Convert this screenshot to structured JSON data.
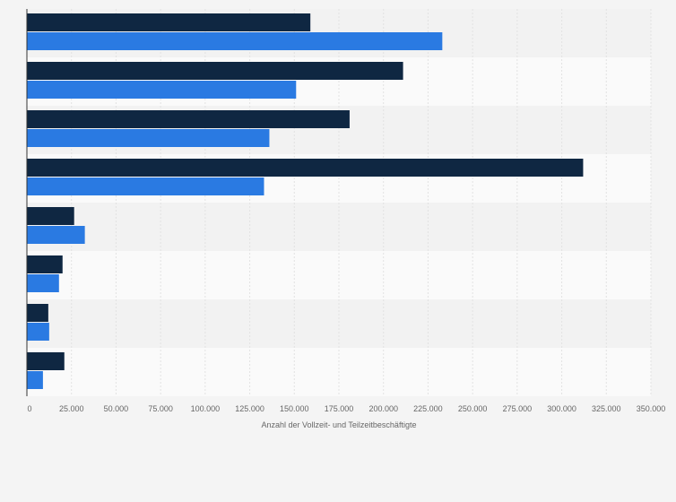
{
  "colors": {
    "background": "#f4f4f4",
    "plot_band_dark": "#f2f2f2",
    "plot_band_light": "#fafafa",
    "gridline": "#e2e2e2",
    "axis_line": "#333333",
    "tick_text": "#666666"
  },
  "chart_data": {
    "type": "bar",
    "orientation": "horizontal",
    "categories": [
      "",
      "",
      "",
      "",
      "",
      "",
      "",
      ""
    ],
    "series": [
      {
        "color": "#0f2742",
        "values": [
          159000,
          211000,
          181000,
          312000,
          26500,
          20000,
          12000,
          21000
        ]
      },
      {
        "color": "#2a7ae2",
        "values": [
          233000,
          151000,
          136000,
          133000,
          32500,
          18000,
          12500,
          9000
        ]
      }
    ],
    "xlabel": "Anzahl der Vollzeit- und Teilzeitbeschäftigte",
    "ylabel": "",
    "xlim": [
      0,
      350000
    ],
    "xticks": [
      0,
      25000,
      50000,
      75000,
      100000,
      125000,
      150000,
      175000,
      200000,
      225000,
      250000,
      275000,
      300000,
      325000,
      350000
    ],
    "xtick_labels": [
      "0",
      "25.000",
      "50.000",
      "75.000",
      "100.000",
      "125.000",
      "150.000",
      "175.000",
      "200.000",
      "225.000",
      "250.000",
      "275.000",
      "300.000",
      "325.000",
      "350.000"
    ],
    "grid": true,
    "legend": "none"
  }
}
